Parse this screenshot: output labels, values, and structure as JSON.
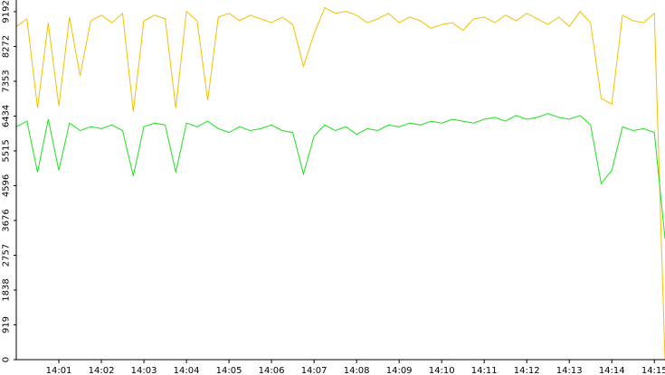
{
  "chart_data": {
    "type": "line",
    "x": [
      0,
      0.25,
      0.5,
      0.75,
      1,
      1.25,
      1.5,
      1.75,
      2,
      2.25,
      2.5,
      2.75,
      3,
      3.25,
      3.5,
      3.75,
      4,
      4.25,
      4.5,
      4.75,
      5,
      5.25,
      5.5,
      5.75,
      6,
      6.25,
      6.5,
      6.75,
      7,
      7.25,
      7.5,
      7.75,
      8,
      8.25,
      8.5,
      8.75,
      9,
      9.25,
      9.5,
      9.75,
      10,
      10.25,
      10.5,
      10.75,
      11,
      11.25,
      11.5,
      11.75,
      12,
      12.25,
      12.5,
      12.75,
      13,
      13.25,
      13.5,
      13.75,
      14,
      14.25,
      14.5,
      14.75,
      15,
      15.25
    ],
    "series": [
      {
        "color": "#f5c000",
        "values": [
          8800,
          9000,
          6650,
          8900,
          6700,
          9050,
          7500,
          8950,
          9100,
          8900,
          9150,
          6550,
          8950,
          9100,
          9000,
          6650,
          9200,
          8950,
          6850,
          9050,
          9150,
          8950,
          9100,
          9000,
          8900,
          9050,
          8850,
          7750,
          8600,
          9300,
          9150,
          9200,
          9100,
          8900,
          9000,
          9150,
          8900,
          9050,
          8950,
          8750,
          8850,
          8900,
          8700,
          9000,
          9050,
          8900,
          9100,
          8950,
          9150,
          9000,
          8850,
          9050,
          8800,
          9200,
          8900,
          6900,
          6750,
          9100,
          8950,
          8900,
          9150,
          0
        ]
      },
      {
        "color": "#1ee01e",
        "values": [
          6150,
          6300,
          4950,
          6350,
          5000,
          6250,
          6050,
          6150,
          6100,
          6200,
          6050,
          4850,
          6150,
          6250,
          6200,
          4950,
          6250,
          6150,
          6300,
          6100,
          6000,
          6150,
          6050,
          6100,
          6200,
          6050,
          6000,
          4900,
          5900,
          6200,
          6050,
          6150,
          5950,
          6100,
          6050,
          6200,
          6150,
          6250,
          6200,
          6300,
          6250,
          6350,
          6300,
          6250,
          6350,
          6400,
          6300,
          6450,
          6350,
          6400,
          6500,
          6400,
          6350,
          6450,
          6200,
          4650,
          5000,
          6150,
          6050,
          6100,
          6000,
          3200
        ]
      }
    ],
    "xlim": [
      0,
      15.25
    ],
    "xticks": [
      {
        "value": 1,
        "label": "14:01"
      },
      {
        "value": 2,
        "label": "14:02"
      },
      {
        "value": 3,
        "label": "14:03"
      },
      {
        "value": 4,
        "label": "14:04"
      },
      {
        "value": 5,
        "label": "14:05"
      },
      {
        "value": 6,
        "label": "14:06"
      },
      {
        "value": 7,
        "label": "14:07"
      },
      {
        "value": 8,
        "label": "14:08"
      },
      {
        "value": 9,
        "label": "14:09"
      },
      {
        "value": 10,
        "label": "14:10"
      },
      {
        "value": 11,
        "label": "14:11"
      },
      {
        "value": 12,
        "label": "14:12"
      },
      {
        "value": 13,
        "label": "14:13"
      },
      {
        "value": 14,
        "label": "14:14"
      },
      {
        "value": 15,
        "label": "14:15"
      }
    ],
    "ylim": [
      0,
      9500
    ],
    "yticks": [
      0,
      919,
      1838,
      2757,
      3676,
      4596,
      5515,
      6434,
      7353,
      8272,
      9192
    ]
  }
}
